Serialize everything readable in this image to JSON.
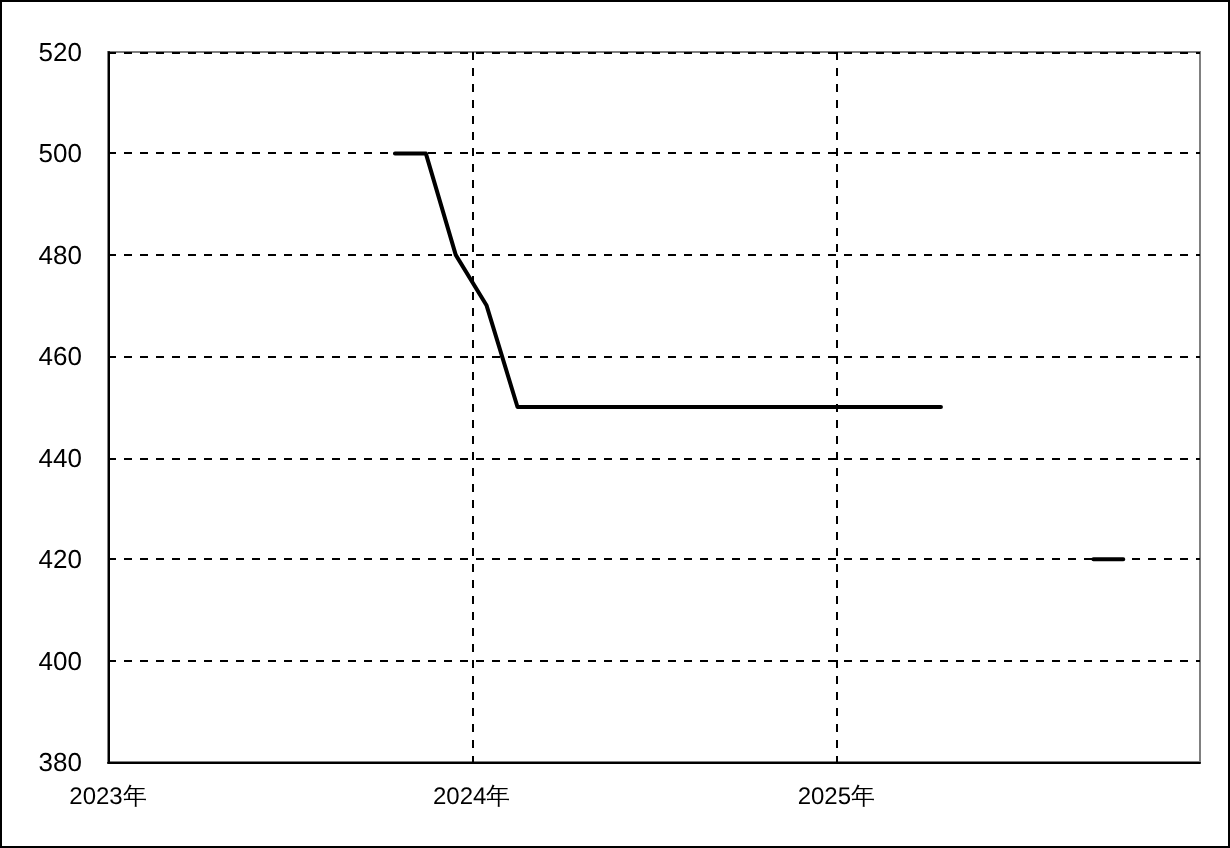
{
  "chart_data": {
    "type": "line",
    "color": "#000000",
    "marker": "none",
    "line_style": "solid",
    "grid": true,
    "x": [
      "2023-10-16",
      "2023-11-16",
      "2023-12-16",
      "2024-01-16",
      "2024-02-16",
      "2024-03-16",
      "2024-04-16",
      "2024-05-16",
      "2024-06-16",
      "2024-07-16",
      "2024-08-16",
      "2024-09-16",
      "2024-10-16",
      "2024-11-16",
      "2024-12-16",
      "2025-01-16",
      "2025-02-16",
      "2025-03-16",
      "2025-04-16",
      "2025-05-16",
      "2025-06-16",
      "2025-07-16",
      "2025-08-16",
      "2025-09-16",
      "2025-10-16"
    ],
    "values": [
      500,
      500,
      480,
      470,
      450,
      450,
      450,
      450,
      450,
      450,
      450,
      450,
      450,
      450,
      450,
      450,
      450,
      450,
      450,
      null,
      null,
      null,
      null,
      420,
      420
    ],
    "xlim": [
      "2023-01-01",
      "2026-01-01"
    ],
    "xticks": [
      {
        "value": "2023-01-01",
        "label": "2023年"
      },
      {
        "value": "2024-01-01",
        "label": "2024年"
      },
      {
        "value": "2025-01-01",
        "label": "2025年"
      }
    ],
    "ylim": [
      380,
      520
    ],
    "yticks": [
      380,
      400,
      420,
      440,
      460,
      480,
      500,
      520
    ]
  }
}
